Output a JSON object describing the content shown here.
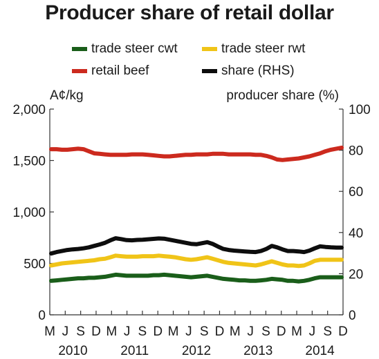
{
  "chart_data": {
    "type": "line",
    "title": "Producer share of retail dollar",
    "left_axis_label": "A¢/kg",
    "right_axis_label": "producer share (%)",
    "left_ylim": [
      0,
      2000
    ],
    "right_ylim": [
      0,
      100
    ],
    "left_ticks": [
      "0",
      "500",
      "1,000",
      "1,500",
      "2,000"
    ],
    "right_ticks": [
      "0",
      "20",
      "40",
      "60",
      "80",
      "100"
    ],
    "x_month_ticks": [
      "M",
      "J",
      "S",
      "D",
      "M",
      "J",
      "S",
      "D",
      "M",
      "J",
      "S",
      "D",
      "M",
      "J",
      "S",
      "D",
      "M",
      "J",
      "S",
      "D"
    ],
    "x_year_labels": [
      "2010",
      "2011",
      "2012",
      "2013",
      "2014"
    ],
    "x": [
      "Mar 2010",
      "Apr 2010",
      "May 2010",
      "Jun 2010",
      "Jul 2010",
      "Aug 2010",
      "Sep 2010",
      "Oct 2010",
      "Nov 2010",
      "Dec 2010",
      "Jan 2011",
      "Feb 2011",
      "Mar 2011",
      "Apr 2011",
      "May 2011",
      "Jun 2011",
      "Jul 2011",
      "Aug 2011",
      "Sep 2011",
      "Oct 2011",
      "Nov 2011",
      "Dec 2011",
      "Jan 2012",
      "Feb 2012",
      "Mar 2012",
      "Apr 2012",
      "May 2012",
      "Jun 2012",
      "Jul 2012",
      "Aug 2012",
      "Sep 2012",
      "Oct 2012",
      "Nov 2012",
      "Dec 2012",
      "Jan 2013",
      "Feb 2013",
      "Mar 2013",
      "Apr 2013",
      "May 2013",
      "Jun 2013",
      "Jul 2013",
      "Aug 2013",
      "Sep 2013",
      "Oct 2013",
      "Nov 2013",
      "Dec 2013",
      "Jan 2014",
      "Feb 2014",
      "Mar 2014",
      "Apr 2014",
      "May 2014",
      "Jun 2014",
      "Jul 2014",
      "Aug 2014",
      "Sep 2014"
    ],
    "series": [
      {
        "name": "trade steer cwt",
        "axis": "left",
        "color": "#1a5e1a",
        "values": [
          330,
          335,
          340,
          345,
          350,
          355,
          355,
          360,
          360,
          365,
          370,
          380,
          390,
          385,
          380,
          380,
          380,
          380,
          380,
          385,
          385,
          390,
          385,
          380,
          375,
          370,
          365,
          370,
          375,
          380,
          370,
          360,
          350,
          345,
          340,
          335,
          335,
          330,
          330,
          335,
          340,
          350,
          345,
          340,
          330,
          330,
          325,
          330,
          340,
          355,
          365,
          365,
          365,
          365,
          365
        ]
      },
      {
        "name": "trade steer rwt",
        "axis": "left",
        "color": "#f0c418",
        "values": [
          480,
          490,
          500,
          505,
          510,
          515,
          520,
          525,
          530,
          540,
          545,
          560,
          575,
          570,
          565,
          565,
          565,
          570,
          570,
          570,
          575,
          570,
          565,
          560,
          550,
          540,
          535,
          540,
          550,
          560,
          545,
          530,
          515,
          505,
          500,
          495,
          490,
          485,
          480,
          490,
          505,
          520,
          505,
          490,
          480,
          480,
          475,
          480,
          500,
          525,
          535,
          535,
          535,
          535,
          535
        ]
      },
      {
        "name": "retail beef",
        "axis": "left",
        "color": "#cc2a1e",
        "values": [
          1610,
          1610,
          1605,
          1605,
          1610,
          1615,
          1610,
          1590,
          1570,
          1565,
          1560,
          1555,
          1555,
          1555,
          1555,
          1560,
          1560,
          1560,
          1555,
          1550,
          1545,
          1540,
          1540,
          1545,
          1550,
          1555,
          1555,
          1560,
          1560,
          1560,
          1565,
          1565,
          1565,
          1560,
          1560,
          1560,
          1560,
          1560,
          1555,
          1555,
          1545,
          1530,
          1510,
          1505,
          1510,
          1515,
          1520,
          1530,
          1540,
          1555,
          1570,
          1590,
          1605,
          1615,
          1625
        ]
      },
      {
        "name": "share (RHS)",
        "axis": "right",
        "color": "#0d0d0d",
        "values": [
          29.8,
          30.5,
          31.0,
          31.5,
          31.8,
          32.0,
          32.3,
          32.8,
          33.5,
          34.2,
          35.0,
          36.2,
          37.2,
          36.8,
          36.3,
          36.2,
          36.4,
          36.5,
          36.7,
          36.9,
          37.1,
          37.0,
          36.5,
          36.0,
          35.5,
          35.0,
          34.5,
          34.3,
          34.8,
          35.3,
          34.5,
          33.2,
          32.0,
          31.5,
          31.2,
          31.0,
          30.8,
          30.6,
          30.5,
          31.0,
          32.0,
          33.5,
          32.8,
          31.8,
          31.0,
          31.0,
          30.8,
          30.5,
          31.2,
          32.3,
          33.3,
          33.0,
          32.8,
          32.7,
          32.7
        ]
      }
    ]
  }
}
